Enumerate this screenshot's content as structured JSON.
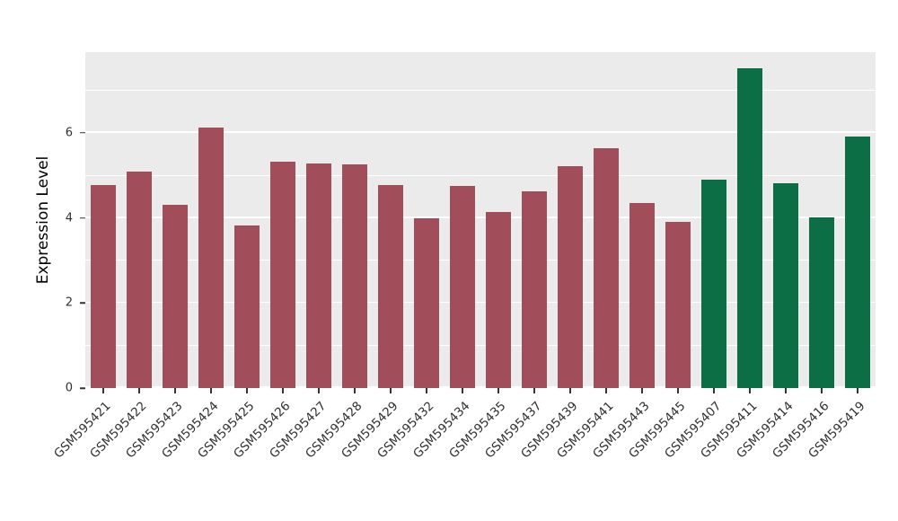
{
  "chart_data": {
    "type": "bar",
    "title": "",
    "xlabel": "",
    "ylabel": "Expression Level",
    "ylim": [
      0,
      7.9
    ],
    "yticks": [
      0,
      2,
      4,
      6
    ],
    "minor_gridlines": [
      1,
      3,
      5,
      7
    ],
    "grid": true,
    "legend_position": "none",
    "panel_background": "#EBEBEB",
    "gridline_color": "#FFFFFF",
    "categories": [
      "GSM595421",
      "GSM595422",
      "GSM595423",
      "GSM595424",
      "GSM595425",
      "GSM595426",
      "GSM595427",
      "GSM595428",
      "GSM595429",
      "GSM595432",
      "GSM595434",
      "GSM595435",
      "GSM595437",
      "GSM595439",
      "GSM595441",
      "GSM595443",
      "GSM595445",
      "GSM595407",
      "GSM595411",
      "GSM595414",
      "GSM595416",
      "GSM595419"
    ],
    "values": [
      4.78,
      5.1,
      4.3,
      6.12,
      3.83,
      5.33,
      5.28,
      5.26,
      4.78,
      4.0,
      4.75,
      4.15,
      4.62,
      5.21,
      5.64,
      4.35,
      3.91,
      4.91,
      7.51,
      4.82,
      4.02,
      5.92
    ],
    "groups": [
      {
        "name": "group-1",
        "color": "#A14E5A",
        "start_index": 0,
        "end_index": 16
      },
      {
        "name": "group-2",
        "color": "#0B6E44",
        "start_index": 17,
        "end_index": 21
      }
    ],
    "bar_colors": [
      "#A14E5A",
      "#A14E5A",
      "#A14E5A",
      "#A14E5A",
      "#A14E5A",
      "#A14E5A",
      "#A14E5A",
      "#A14E5A",
      "#A14E5A",
      "#A14E5A",
      "#A14E5A",
      "#A14E5A",
      "#A14E5A",
      "#A14E5A",
      "#A14E5A",
      "#A14E5A",
      "#A14E5A",
      "#0B6E44",
      "#0B6E44",
      "#0B6E44",
      "#0B6E44",
      "#0B6E44"
    ]
  }
}
